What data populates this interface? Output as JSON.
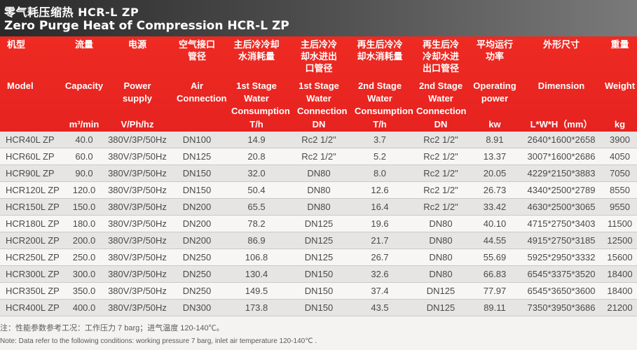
{
  "title": {
    "cn": "零气耗压缩热 HCR-L ZP",
    "en": "Zero Purge Heat of Compression HCR-L ZP"
  },
  "columns": [
    {
      "cn": "机型",
      "en": "Model",
      "unit": ""
    },
    {
      "cn": "流量",
      "en": "Capacity",
      "unit": "m³/min"
    },
    {
      "cn": "电源",
      "en": "Power supply",
      "unit": "V/Ph/hz"
    },
    {
      "cn": "空气接口 管径",
      "en": "Air Connection",
      "unit": ""
    },
    {
      "cn": "主后冷冷却 水消耗量",
      "en": "1st Stage Water Consumption",
      "unit": "T/h"
    },
    {
      "cn": "主后冷冷 却水进出 口管径",
      "en": "1st Stage Water Connection",
      "unit": "DN"
    },
    {
      "cn": "再生后冷冷 却水消耗量",
      "en": "2nd Stage Water Consumption",
      "unit": "T/h"
    },
    {
      "cn": "再生后冷 冷却水进 出口管径",
      "en": "2nd Stage Water Connection",
      "unit": "DN"
    },
    {
      "cn": "平均运行 功率",
      "en": "Operating power",
      "unit": "kw"
    },
    {
      "cn": "外形尺寸",
      "en": "Dimension",
      "unit": "L*W*H（mm）"
    },
    {
      "cn": "重量",
      "en": "Weight",
      "unit": "kg"
    }
  ],
  "rows": [
    [
      "HCR40L ZP",
      "40.0",
      "380V/3P/50Hz",
      "DN100",
      "14.9",
      "Rc2 1/2\"",
      "3.7",
      "Rc2 1/2\"",
      "8.91",
      "2640*1600*2658",
      "3900"
    ],
    [
      "HCR60L ZP",
      "60.0",
      "380V/3P/50Hz",
      "DN125",
      "20.8",
      "Rc2 1/2\"",
      "5.2",
      "Rc2 1/2\"",
      "13.37",
      "3007*1600*2686",
      "4050"
    ],
    [
      "HCR90L ZP",
      "90.0",
      "380V/3P/50Hz",
      "DN150",
      "32.0",
      "DN80",
      "8.0",
      "Rc2 1/2\"",
      "20.05",
      "4229*2150*3883",
      "7050"
    ],
    [
      "HCR120L ZP",
      "120.0",
      "380V/3P/50Hz",
      "DN150",
      "50.4",
      "DN80",
      "12.6",
      "Rc2 1/2\"",
      "26.73",
      "4340*2500*2789",
      "8550"
    ],
    [
      "HCR150L ZP",
      "150.0",
      "380V/3P/50Hz",
      "DN200",
      "65.5",
      "DN80",
      "16.4",
      "Rc2 1/2\"",
      "33.42",
      "4630*2500*3065",
      "9550"
    ],
    [
      "HCR180L ZP",
      "180.0",
      "380V/3P/50Hz",
      "DN200",
      "78.2",
      "DN125",
      "19.6",
      "DN80",
      "40.10",
      "4715*2750*3403",
      "11500"
    ],
    [
      "HCR200L ZP",
      "200.0",
      "380V/3P/50Hz",
      "DN200",
      "86.9",
      "DN125",
      "21.7",
      "DN80",
      "44.55",
      "4915*2750*3185",
      "12500"
    ],
    [
      "HCR250L ZP",
      "250.0",
      "380V/3P/50Hz",
      "DN250",
      "106.8",
      "DN125",
      "26.7",
      "DN80",
      "55.69",
      "5925*2950*3332",
      "15600"
    ],
    [
      "HCR300L ZP",
      "300.0",
      "380V/3P/50Hz",
      "DN250",
      "130.4",
      "DN150",
      "32.6",
      "DN80",
      "66.83",
      "6545*3375*3520",
      "18400"
    ],
    [
      "HCR350L ZP",
      "350.0",
      "380V/3P/50Hz",
      "DN250",
      "149.5",
      "DN150",
      "37.4",
      "DN125",
      "77.97",
      "6545*3650*3600",
      "18400"
    ],
    [
      "HCR400L ZP",
      "400.0",
      "380V/3P/50Hz",
      "DN300",
      "173.8",
      "DN150",
      "43.5",
      "DN125",
      "89.11",
      "7350*3950*3686",
      "21200"
    ]
  ],
  "notes": {
    "cn": "注：性能参数参考工况：工作压力 7 barg；进气温度 120-140℃。",
    "en": "Note: Data refer to the following conditions: working pressure 7 barg,  inlet air temperature 120-140℃ ."
  },
  "colors": {
    "header_red": "#e62320",
    "title_dark": "#2a2a2a"
  }
}
